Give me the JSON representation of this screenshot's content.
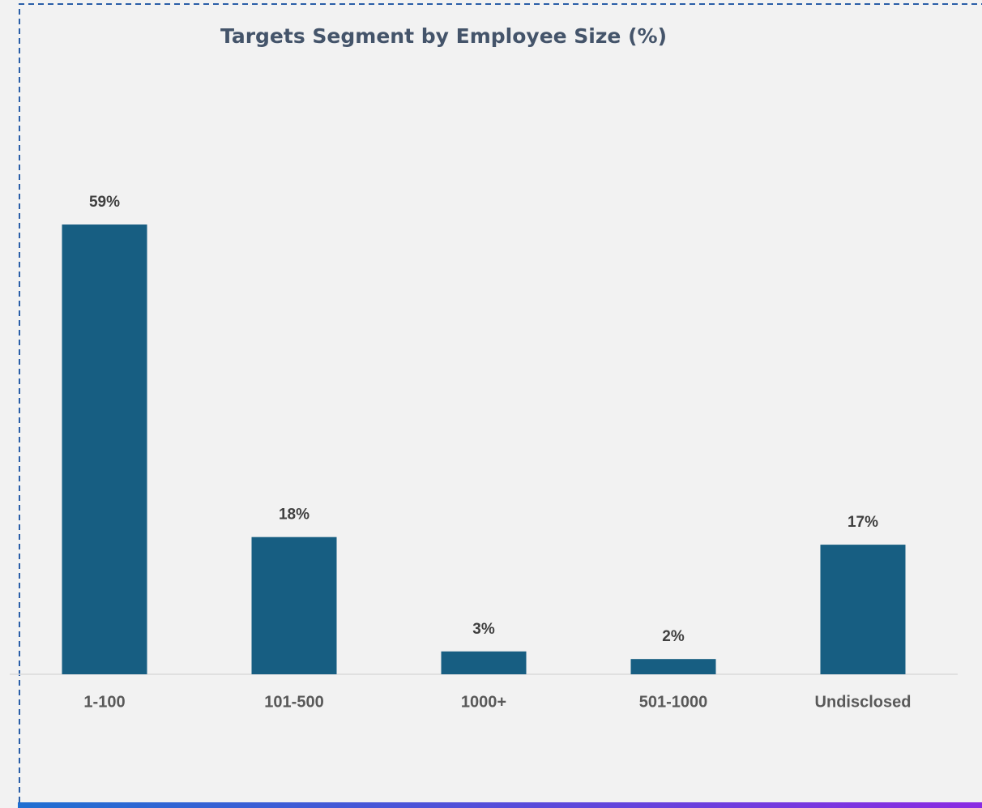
{
  "chart_data": {
    "type": "bar",
    "title": "Targets Segment by Employee Size (%)",
    "categories": [
      "1-100",
      "101-500",
      "1000+",
      "501-1000",
      "Undisclosed"
    ],
    "values": [
      59,
      18,
      3,
      2,
      17
    ],
    "value_labels": [
      "59%",
      "18%",
      "3%",
      "2%",
      "17%"
    ],
    "color": "#175e82",
    "ylim": [
      0,
      64
    ]
  }
}
